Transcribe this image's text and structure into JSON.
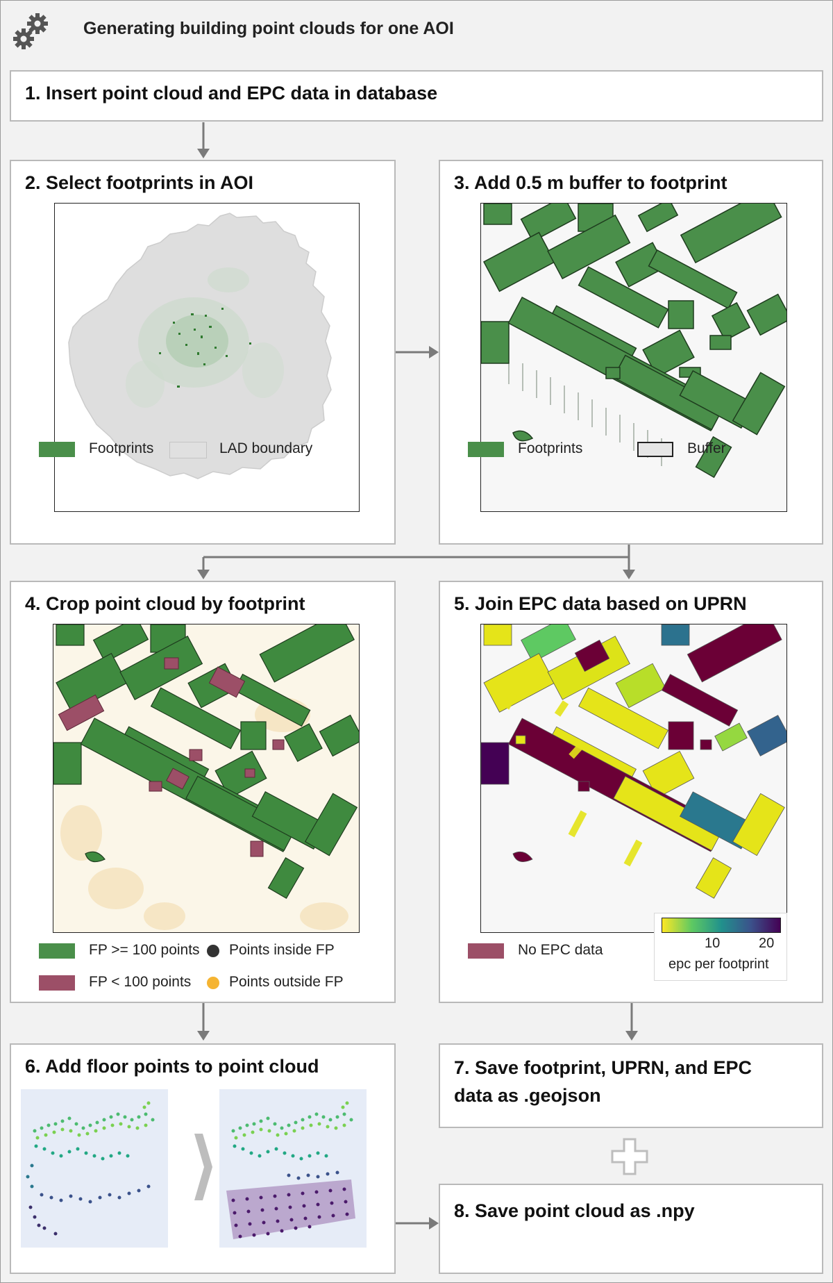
{
  "header": {
    "title": "Generating building point clouds for one AOI"
  },
  "steps": {
    "s1": "1. Insert point cloud and EPC data in database",
    "s2": "2. Select footprints in AOI",
    "s3": "3. Add 0.5 m buffer to footprint",
    "s4": "4. Crop point cloud by footprint",
    "s5": "5. Join EPC data based on UPRN",
    "s6": "6. Add floor points to point cloud",
    "s7a": "7. Save footprint, UPRN, and EPC",
    "s7b": "data as .geojson",
    "s8": "8. Save point cloud as .npy"
  },
  "legends": {
    "s2": {
      "footprints": "Footprints",
      "lad": "LAD boundary"
    },
    "s3": {
      "footprints": "Footprints",
      "buffer": "Buffer"
    },
    "s4": {
      "fp_ge": "FP >= 100 points",
      "fp_lt": "FP < 100 points",
      "inside": "Points inside FP",
      "outside": "Points outside FP"
    },
    "s5": {
      "no_epc": "No EPC data",
      "tick1": "10",
      "tick2": "20",
      "colorbar_label": "epc per footprint"
    }
  },
  "colors": {
    "footprint_green": "#4a8f4a",
    "no_fp_red": "#9c4f67",
    "lad_grey": "#e0e0e0",
    "inside_dot": "#333333",
    "outside_dot": "#f5b432"
  },
  "icons": [
    "gear-icon",
    "plus-icon",
    "chevron-right-icon"
  ]
}
